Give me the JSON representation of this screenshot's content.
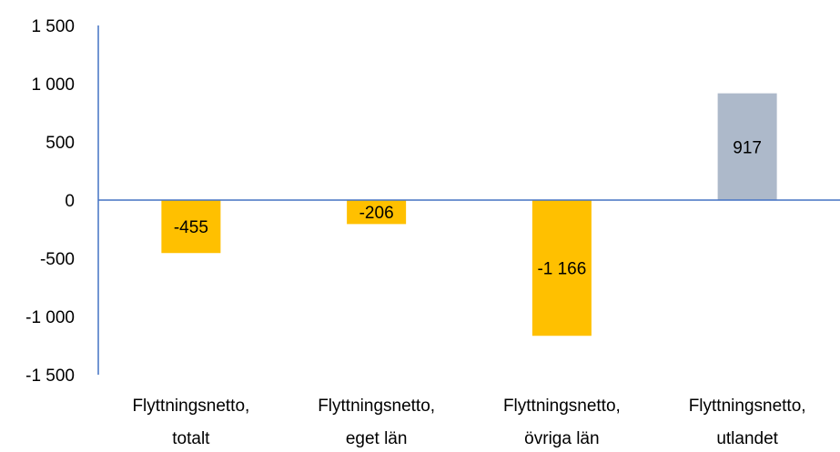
{
  "chart_data": {
    "type": "bar",
    "title": "",
    "xlabel": "",
    "ylabel": "",
    "ylim": [
      -1500,
      1500
    ],
    "yticks": [
      1500,
      1000,
      500,
      0,
      -500,
      -1000,
      -1500
    ],
    "ytick_labels": [
      "1 500",
      "1 000",
      "500",
      "0",
      "-500",
      "-1 000",
      "-1 500"
    ],
    "grid": false,
    "legend": "none",
    "categories": [
      [
        "Flyttningsnetto,",
        "totalt"
      ],
      [
        "Flyttningsnetto,",
        "eget län"
      ],
      [
        "Flyttningsnetto,",
        "övriga län"
      ],
      [
        "Flyttningsnetto,",
        "utlandet"
      ]
    ],
    "values": [
      -455,
      -206,
      -1166,
      917
    ],
    "data_labels": [
      "-455",
      "-206",
      "-1 166",
      "917"
    ],
    "colors": [
      "#FFC000",
      "#FFC000",
      "#FFC000",
      "#ADB9CA"
    ],
    "axis_color": "#4472C4"
  }
}
